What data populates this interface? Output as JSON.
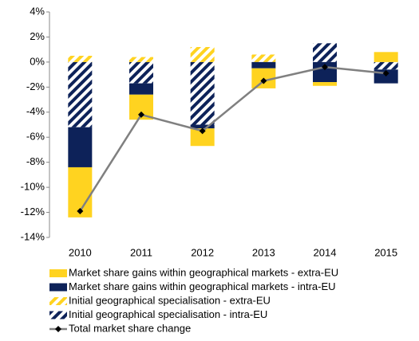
{
  "chart_data": {
    "type": "bar",
    "categories": [
      "2010",
      "2011",
      "2012",
      "2013",
      "2014",
      "2015"
    ],
    "ylim": [
      -14,
      4
    ],
    "yticks": [
      {
        "value": 4,
        "label": "4%"
      },
      {
        "value": 2,
        "label": "2%"
      },
      {
        "value": 0,
        "label": "0%"
      },
      {
        "value": -2,
        "label": "-2%"
      },
      {
        "value": -4,
        "label": "-4%"
      },
      {
        "value": -6,
        "label": "-6%"
      },
      {
        "value": -8,
        "label": "-8%"
      },
      {
        "value": -10,
        "label": "-10%"
      },
      {
        "value": -12,
        "label": "-12%"
      },
      {
        "value": -14,
        "label": "-14%"
      }
    ],
    "series": [
      {
        "name": "Market share gains within geographical markets - extra-EU",
        "type": "bar",
        "color": "#FFD320",
        "hatched": false,
        "values": [
          -4.0,
          -2.0,
          -1.4,
          -1.6,
          -0.3,
          0.8
        ]
      },
      {
        "name": "Market share gains within geographical markets - intra-EU",
        "type": "bar",
        "color": "#0D2259",
        "hatched": false,
        "values": [
          -3.2,
          -0.9,
          -0.3,
          -0.5,
          -1.6,
          -1.1
        ]
      },
      {
        "name": "Initial geographical specialisation - extra-EU",
        "type": "bar",
        "color": "#FFD320",
        "hatched": true,
        "values": [
          0.5,
          0.4,
          1.2,
          0.6,
          0,
          0
        ]
      },
      {
        "name": "Initial geographical specialisation - intra-EU",
        "type": "bar",
        "color": "#0D2259",
        "hatched": true,
        "values": [
          -5.2,
          -1.7,
          -5.0,
          0,
          1.5,
          -0.6
        ]
      },
      {
        "name": "Total market share change",
        "type": "line",
        "color": "#808080",
        "values": [
          -11.9,
          -4.2,
          -5.5,
          -1.5,
          -0.4,
          -0.9
        ]
      }
    ]
  }
}
